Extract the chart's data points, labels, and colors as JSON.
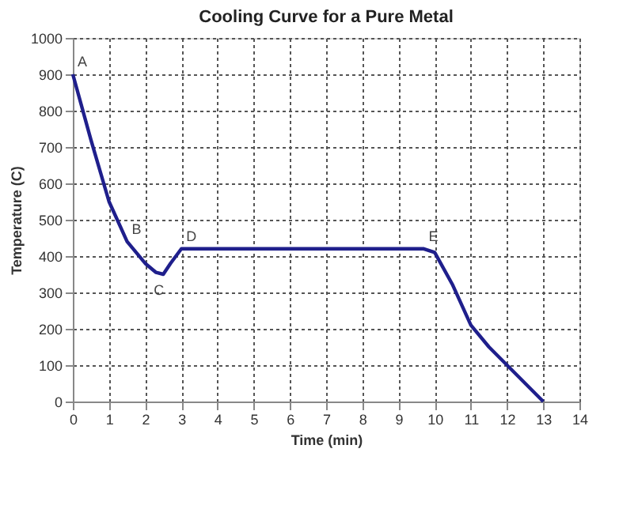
{
  "chart_data": {
    "type": "line",
    "title": "Cooling Curve for a Pure Metal",
    "xlabel": "Time (min)",
    "ylabel": "Temperature (C)",
    "x": [
      0,
      0.5,
      1,
      1.5,
      2,
      2.3,
      2.5,
      2.7,
      3,
      9.7,
      10,
      10.5,
      11,
      11.5,
      12,
      12.5,
      13
    ],
    "series": [
      {
        "color": "#1f1f8c",
        "values": [
          900,
          720,
          550,
          440,
          380,
          355,
          350,
          380,
          420,
          420,
          410,
          320,
          210,
          150,
          100,
          50,
          0
        ]
      }
    ],
    "xlim": [
      0,
      14
    ],
    "xticks": [
      0,
      1,
      2,
      3,
      4,
      5,
      6,
      7,
      8,
      9,
      10,
      11,
      12,
      13,
      14
    ],
    "ylim": [
      0,
      1000
    ],
    "yticks": [
      0,
      100,
      200,
      300,
      400,
      500,
      600,
      700,
      800,
      900,
      1000
    ],
    "grid": true,
    "marker": "none",
    "line_style": "solid",
    "annotations": [
      {
        "text": "A",
        "x": 0,
        "y": 900
      },
      {
        "text": "B",
        "x": 1.5,
        "y": 440
      },
      {
        "text": "C",
        "x": 2.5,
        "y": 350
      },
      {
        "text": "D",
        "x": 3,
        "y": 420
      },
      {
        "text": "E",
        "x": 9.7,
        "y": 420
      }
    ]
  }
}
